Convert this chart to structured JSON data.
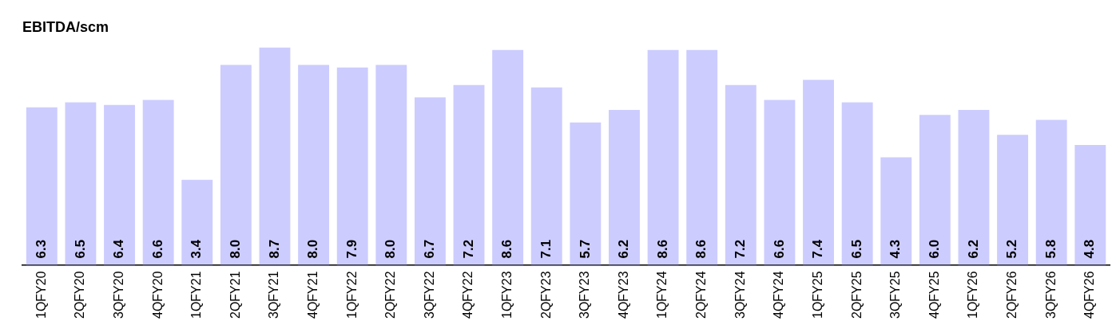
{
  "chart_data": {
    "type": "bar",
    "title": "EBITDA/scm",
    "categories": [
      "1QFY20",
      "2QFY20",
      "3QFY20",
      "4QFY20",
      "1QFY21",
      "2QFY21",
      "3QFY21",
      "4QFY21",
      "1QFY22",
      "2QFY22",
      "3QFY22",
      "4QFY22",
      "1QFY23",
      "2QFY23",
      "3QFY23",
      "4QFY23",
      "1QFY24",
      "2QFY24",
      "3QFY24",
      "4QFY24",
      "1QFY25",
      "2QFY25",
      "3QFY25",
      "4QFY25",
      "1QFY26",
      "2QFY26",
      "3QFY26",
      "4QFY26"
    ],
    "values": [
      6.3,
      6.5,
      6.4,
      6.6,
      3.4,
      8.0,
      8.7,
      8.0,
      7.9,
      8.0,
      6.7,
      7.2,
      8.6,
      7.1,
      5.7,
      6.2,
      8.6,
      8.6,
      7.2,
      6.6,
      7.4,
      6.5,
      4.3,
      6.0,
      6.2,
      5.2,
      5.8,
      4.8
    ],
    "value_labels": [
      "6.3",
      "6.5",
      "6.4",
      "6.6",
      "3.4",
      "8.0",
      "8.7",
      "8.0",
      "7.9",
      "8.0",
      "6.7",
      "7.2",
      "8.6",
      "7.1",
      "5.7",
      "6.2",
      "8.6",
      "8.6",
      "7.2",
      "6.6",
      "7.4",
      "6.5",
      "4.3",
      "6.0",
      "6.2",
      "5.2",
      "5.8",
      "4.8"
    ],
    "color": "#ccccff",
    "grid": false,
    "legend": false,
    "tick_labels": "x"
  }
}
